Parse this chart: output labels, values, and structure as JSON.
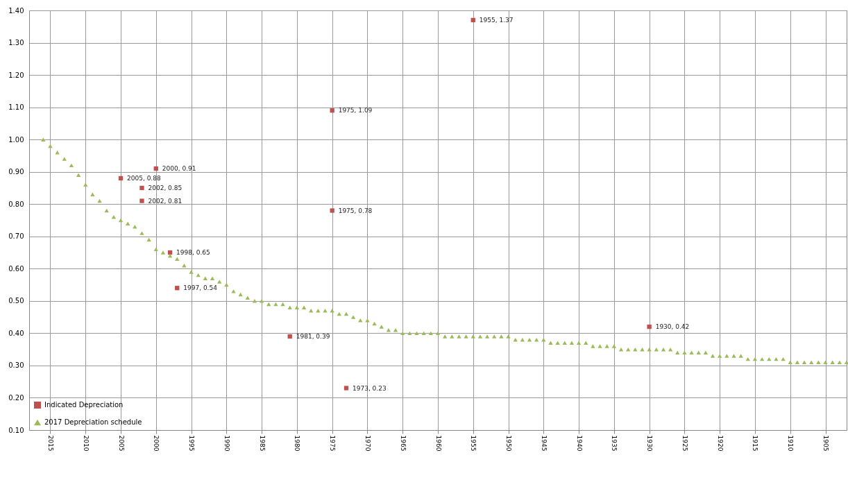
{
  "chart_data": {
    "type": "scatter",
    "xlim": [
      2018,
      1902
    ],
    "xticks": [
      2015,
      2010,
      2005,
      2000,
      1995,
      1990,
      1985,
      1980,
      1975,
      1970,
      1965,
      1960,
      1955,
      1950,
      1945,
      1940,
      1935,
      1930,
      1925,
      1920,
      1915,
      1910,
      1905
    ],
    "ylim": [
      0.1,
      1.4
    ],
    "yticks": [
      {
        "value": 0.1,
        "label": "0.10"
      },
      {
        "value": 0.2,
        "label": "0.20"
      },
      {
        "value": 0.3,
        "label": "0.30"
      },
      {
        "value": 0.4,
        "label": "0.40"
      },
      {
        "value": 0.5,
        "label": "0.50"
      },
      {
        "value": 0.6,
        "label": "0.60"
      },
      {
        "value": 0.7,
        "label": "0.70"
      },
      {
        "value": 0.8,
        "label": "0.80"
      },
      {
        "value": 0.9,
        "label": "0.90"
      },
      {
        "value": 1.0,
        "label": "1.00"
      },
      {
        "value": 1.1,
        "label": "1.10"
      },
      {
        "value": 1.2,
        "label": "1.20"
      },
      {
        "value": 1.3,
        "label": "1.30"
      },
      {
        "value": 1.4,
        "label": "1.40"
      }
    ],
    "grid": true,
    "legend": "bottom left",
    "series": [
      {
        "name": "Indicated Depreciation",
        "color": "#c0504d",
        "marker": "square",
        "value_labels": [
          "2005, 0.88",
          "2002, 0.85",
          "2002, 0.81",
          "2000, 0.91",
          "1998, 0.65",
          "1997, 0.54",
          "1981, 0.39",
          "1975, 1.09",
          "1975, 0.78",
          "1973, 0.23",
          "1955, 1.37",
          "1930, 0.42"
        ],
        "x": [
          2005,
          2002,
          2002,
          2000,
          1998,
          1997,
          1981,
          1975,
          1975,
          1973,
          1955,
          1930
        ],
        "values": [
          0.88,
          0.85,
          0.81,
          0.91,
          0.65,
          0.54,
          0.39,
          1.09,
          0.78,
          0.23,
          1.37,
          0.42
        ]
      },
      {
        "name": "2017 Depreciation schedule",
        "color": "#9bbb59",
        "marker": "triangle",
        "x": [
          2016,
          2015,
          2014,
          2013,
          2012,
          2011,
          2010,
          2009,
          2008,
          2007,
          2006,
          2005,
          2004,
          2003,
          2002,
          2001,
          2000,
          1999,
          1998,
          1997,
          1996,
          1995,
          1994,
          1993,
          1992,
          1991,
          1990,
          1989,
          1988,
          1987,
          1986,
          1985,
          1984,
          1983,
          1982,
          1981,
          1980,
          1979,
          1978,
          1977,
          1976,
          1975,
          1974,
          1973,
          1972,
          1971,
          1970,
          1969,
          1968,
          1967,
          1966,
          1965,
          1964,
          1963,
          1962,
          1961,
          1960,
          1959,
          1958,
          1957,
          1956,
          1955,
          1954,
          1953,
          1952,
          1951,
          1950,
          1949,
          1948,
          1947,
          1946,
          1945,
          1944,
          1943,
          1942,
          1941,
          1940,
          1939,
          1938,
          1937,
          1936,
          1935,
          1934,
          1933,
          1932,
          1931,
          1930,
          1929,
          1928,
          1927,
          1926,
          1925,
          1924,
          1923,
          1922,
          1921,
          1920,
          1919,
          1918,
          1917,
          1916,
          1915,
          1914,
          1913,
          1912,
          1911,
          1910,
          1909,
          1908,
          1907,
          1906,
          1905,
          1904,
          1903,
          1902
        ],
        "values": [
          1.0,
          0.98,
          0.96,
          0.94,
          0.92,
          0.89,
          0.86,
          0.83,
          0.81,
          0.78,
          0.76,
          0.75,
          0.74,
          0.73,
          0.71,
          0.69,
          0.66,
          0.65,
          0.64,
          0.63,
          0.61,
          0.59,
          0.58,
          0.57,
          0.57,
          0.56,
          0.55,
          0.53,
          0.52,
          0.51,
          0.5,
          0.5,
          0.49,
          0.49,
          0.49,
          0.48,
          0.48,
          0.48,
          0.47,
          0.47,
          0.47,
          0.47,
          0.46,
          0.46,
          0.45,
          0.44,
          0.44,
          0.43,
          0.42,
          0.41,
          0.41,
          0.4,
          0.4,
          0.4,
          0.4,
          0.4,
          0.4,
          0.39,
          0.39,
          0.39,
          0.39,
          0.39,
          0.39,
          0.39,
          0.39,
          0.39,
          0.39,
          0.38,
          0.38,
          0.38,
          0.38,
          0.38,
          0.37,
          0.37,
          0.37,
          0.37,
          0.37,
          0.37,
          0.36,
          0.36,
          0.36,
          0.36,
          0.35,
          0.35,
          0.35,
          0.35,
          0.35,
          0.35,
          0.35,
          0.35,
          0.34,
          0.34,
          0.34,
          0.34,
          0.34,
          0.33,
          0.33,
          0.33,
          0.33,
          0.33,
          0.32,
          0.32,
          0.32,
          0.32,
          0.32,
          0.32,
          0.31,
          0.31,
          0.31,
          0.31,
          0.31,
          0.31,
          0.31,
          0.31,
          0.31
        ]
      }
    ]
  }
}
